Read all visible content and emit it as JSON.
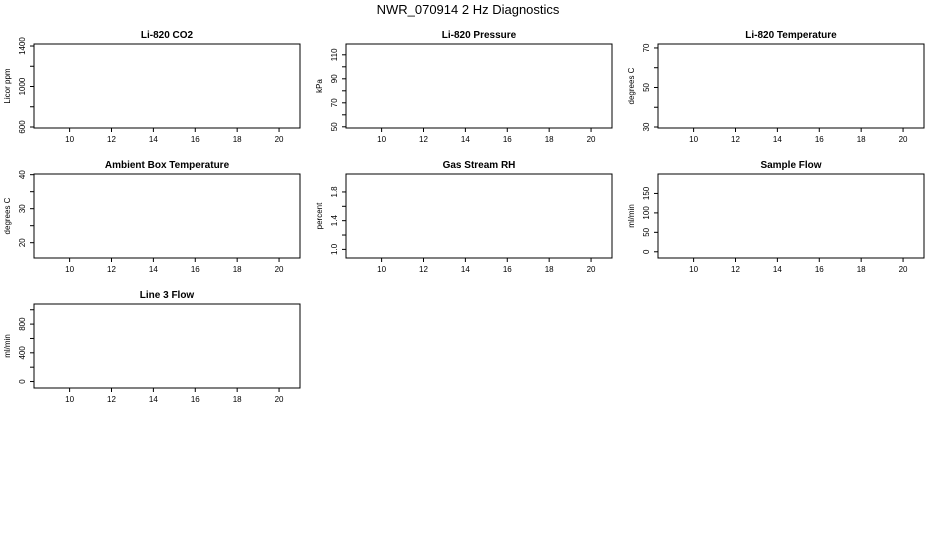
{
  "figure": {
    "title": "NWR_070914  2 Hz Diagnostics"
  },
  "chart_data": [
    {
      "type": "line",
      "title": "Li-820 CO2",
      "xlabel": "",
      "ylabel": "Licor ppm",
      "xlim": [
        8.3,
        21
      ],
      "ylim": [
        590,
        1420
      ],
      "x_ticks": [
        10,
        12,
        14,
        16,
        18,
        20
      ],
      "x_tick_labels": [
        "10",
        "12",
        "14",
        "16",
        "18",
        "20"
      ],
      "y_ticks": [
        600,
        800,
        1000,
        1200,
        1400
      ],
      "y_tick_labels": [
        "600",
        "",
        "1000",
        "",
        "1400"
      ],
      "series": []
    },
    {
      "type": "line",
      "title": "Li-820 Pressure",
      "xlabel": "",
      "ylabel": "kPa",
      "xlim": [
        8.3,
        21
      ],
      "ylim": [
        49,
        119
      ],
      "x_ticks": [
        10,
        12,
        14,
        16,
        18,
        20
      ],
      "x_tick_labels": [
        "10",
        "12",
        "14",
        "16",
        "18",
        "20"
      ],
      "y_ticks": [
        50,
        60,
        70,
        80,
        90,
        100,
        110
      ],
      "y_tick_labels": [
        "50",
        "",
        "70",
        "",
        "90",
        "",
        "110"
      ],
      "series": []
    },
    {
      "type": "line",
      "title": "Li-820 Temperature",
      "xlabel": "",
      "ylabel": "degrees C",
      "xlim": [
        8.3,
        21
      ],
      "ylim": [
        29.5,
        72
      ],
      "x_ticks": [
        10,
        12,
        14,
        16,
        18,
        20
      ],
      "x_tick_labels": [
        "10",
        "12",
        "14",
        "16",
        "18",
        "20"
      ],
      "y_ticks": [
        30,
        40,
        50,
        60,
        70
      ],
      "y_tick_labels": [
        "30",
        "",
        "50",
        "",
        "70"
      ],
      "series": []
    },
    {
      "type": "line",
      "title": "Ambient Box Temperature",
      "xlabel": "",
      "ylabel": "degrees C",
      "xlim": [
        8.3,
        21
      ],
      "ylim": [
        15.5,
        40.2
      ],
      "x_ticks": [
        10,
        12,
        14,
        16,
        18,
        20
      ],
      "x_tick_labels": [
        "10",
        "12",
        "14",
        "16",
        "18",
        "20"
      ],
      "y_ticks": [
        20,
        25,
        30,
        35,
        40
      ],
      "y_tick_labels": [
        "20",
        "",
        "30",
        "",
        "40"
      ],
      "series": []
    },
    {
      "type": "line",
      "title": "Gas Stream RH",
      "xlabel": "",
      "ylabel": "percent",
      "xlim": [
        8.3,
        21
      ],
      "ylim": [
        0.88,
        2.05
      ],
      "x_ticks": [
        10,
        12,
        14,
        16,
        18,
        20
      ],
      "x_tick_labels": [
        "10",
        "12",
        "14",
        "16",
        "18",
        "20"
      ],
      "y_ticks": [
        1.0,
        1.2,
        1.4,
        1.6,
        1.8
      ],
      "y_tick_labels": [
        "1.0",
        "",
        "1.4",
        "",
        "1.8"
      ],
      "series": []
    },
    {
      "type": "line",
      "title": "Sample Flow",
      "xlabel": "",
      "ylabel": "ml/min",
      "xlim": [
        8.3,
        21
      ],
      "ylim": [
        -16,
        200
      ],
      "x_ticks": [
        10,
        12,
        14,
        16,
        18,
        20
      ],
      "x_tick_labels": [
        "10",
        "12",
        "14",
        "16",
        "18",
        "20"
      ],
      "y_ticks": [
        0,
        50,
        100,
        150
      ],
      "y_tick_labels": [
        "0",
        "50",
        "100",
        "150"
      ],
      "series": []
    },
    {
      "type": "line",
      "title": "Line 3 Flow",
      "xlabel": "",
      "ylabel": "ml/min",
      "xlim": [
        8.3,
        21
      ],
      "ylim": [
        -90,
        1080
      ],
      "x_ticks": [
        10,
        12,
        14,
        16,
        18,
        20
      ],
      "x_tick_labels": [
        "10",
        "12",
        "14",
        "16",
        "18",
        "20"
      ],
      "y_ticks": [
        0,
        200,
        400,
        600,
        800,
        1000
      ],
      "y_tick_labels": [
        "0",
        "",
        "400",
        "",
        "800",
        ""
      ],
      "series": []
    }
  ]
}
